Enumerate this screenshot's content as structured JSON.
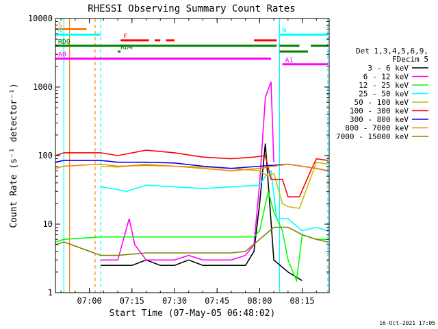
{
  "chart_data": {
    "type": "line",
    "title": "RHESSI Observing Summary Count Rates",
    "xlabel": "Start Time (07-May-05 06:48:02)",
    "ylabel": "Count Rate (s⁻¹ detector⁻¹)",
    "yscale": "log",
    "ylim": [
      1,
      10000
    ],
    "xlim": [
      "06:48:02",
      "08:24:30"
    ],
    "x_ticks": [
      "07:00",
      "07:15",
      "07:30",
      "07:45",
      "08:00",
      "08:15"
    ],
    "y_ticks": [
      "1",
      "10",
      "100",
      "1000",
      "10000"
    ],
    "legend_title": [
      "Det 1,3,4,5,6,9,",
      "FDecim 5"
    ],
    "legend_position": "right",
    "timestamp": "16-Oct-2021 17:05",
    "series": [
      {
        "name": "3 - 6 keV",
        "color": "#000000",
        "x": [
          "07:04",
          "07:10",
          "07:15",
          "07:20",
          "07:25",
          "07:30",
          "07:35",
          "07:40",
          "07:45",
          "07:50",
          "07:55",
          "07:58",
          "08:00",
          "08:02",
          "08:05",
          "08:10",
          "08:15"
        ],
        "y": [
          2.5,
          2.5,
          2.5,
          3,
          2.5,
          2.5,
          3,
          2.5,
          2.5,
          2.5,
          2.5,
          4,
          20,
          150,
          3,
          2,
          1.5
        ]
      },
      {
        "name": "6 - 12 keV",
        "color": "#ff00ff",
        "x": [
          "07:04",
          "07:10",
          "07:14",
          "07:16",
          "07:20",
          "07:25",
          "07:30",
          "07:35",
          "07:40",
          "07:45",
          "07:50",
          "07:55",
          "07:58",
          "08:00",
          "08:02",
          "08:04",
          "08:05"
        ],
        "y": [
          3,
          3,
          12,
          5,
          3,
          3,
          3,
          3.5,
          3,
          3,
          3,
          3.5,
          5,
          40,
          700,
          1200,
          80
        ]
      },
      {
        "name": "12 - 25 keV",
        "color": "#00ff00",
        "x": [
          "06:48",
          "06:51",
          "07:04",
          "07:10",
          "07:20",
          "07:30",
          "07:40",
          "07:50",
          "07:58",
          "08:00",
          "08:03",
          "08:05",
          "08:08",
          "08:10",
          "08:13",
          "08:15",
          "08:20",
          "08:24"
        ],
        "y": [
          5.5,
          6,
          6.5,
          6.5,
          6.5,
          6.5,
          6.5,
          6.5,
          6.5,
          8,
          30,
          15,
          8,
          3,
          1.5,
          7,
          6,
          6
        ]
      },
      {
        "name": "25 - 50 keV",
        "color": "#00ffff",
        "x": [
          "07:04",
          "07:10",
          "07:13",
          "07:20",
          "07:30",
          "07:40",
          "07:50",
          "08:00",
          "08:02",
          "08:04",
          "08:06",
          "08:10",
          "08:15",
          "08:20",
          "08:24"
        ],
        "y": [
          35,
          32,
          30,
          37,
          35,
          33,
          35,
          37,
          50,
          60,
          12,
          12,
          8,
          9,
          8
        ]
      },
      {
        "name": "50 - 100 keV",
        "color": "#c0c000",
        "x": [
          "07:04",
          "07:10",
          "07:20",
          "07:30",
          "07:40",
          "07:50",
          "08:00",
          "08:03",
          "08:05",
          "08:08",
          "08:10",
          "08:14",
          "08:20",
          "08:24"
        ],
        "y": [
          70,
          68,
          75,
          70,
          68,
          65,
          60,
          50,
          55,
          20,
          18,
          17,
          80,
          75
        ]
      },
      {
        "name": "100 - 300 keV",
        "color": "#ff0000",
        "x": [
          "06:48",
          "06:51",
          "07:04",
          "07:10",
          "07:20",
          "07:30",
          "07:40",
          "07:50",
          "07:58",
          "08:02",
          "08:04",
          "08:08",
          "08:10",
          "08:14",
          "08:18",
          "08:20",
          "08:24"
        ],
        "y": [
          100,
          110,
          110,
          100,
          120,
          110,
          95,
          90,
          95,
          100,
          45,
          45,
          25,
          25,
          60,
          90,
          85
        ]
      },
      {
        "name": "300 - 800 keV",
        "color": "#0000ff",
        "x": [
          "06:48",
          "06:51",
          "07:04",
          "07:10",
          "07:20",
          "07:30",
          "07:40",
          "07:50",
          "08:00",
          "08:10",
          "08:20",
          "08:24"
        ],
        "y": [
          80,
          85,
          85,
          80,
          80,
          78,
          70,
          65,
          70,
          75,
          65,
          60
        ]
      },
      {
        "name": "800 - 7000 keV",
        "color": "#ff8000",
        "x": [
          "06:48",
          "06:51",
          "07:04",
          "07:10",
          "07:20",
          "07:30",
          "07:40",
          "07:50",
          "08:00",
          "08:10",
          "08:20",
          "08:24"
        ],
        "y": [
          65,
          70,
          75,
          70,
          72,
          70,
          65,
          60,
          65,
          75,
          65,
          60
        ]
      },
      {
        "name": "7000 - 15000 keV",
        "color": "#808000",
        "x": [
          "06:48",
          "06:51",
          "07:04",
          "07:10",
          "07:20",
          "07:30",
          "07:40",
          "07:50",
          "07:55",
          "08:00",
          "08:05",
          "08:10",
          "08:15",
          "08:20",
          "08:24"
        ],
        "y": [
          5,
          5.5,
          3.5,
          3.5,
          3.8,
          3.8,
          3.8,
          3.8,
          4,
          6,
          9,
          9,
          7,
          6,
          5.5
        ]
      }
    ],
    "flags": [
      {
        "label": "S",
        "color": "#ff8000",
        "y": 7000,
        "start": "06:48",
        "end": "06:59"
      },
      {
        "label": "N",
        "color": "#00ffff",
        "y": 5800,
        "start": "06:48",
        "end": "07:04"
      },
      {
        "label": "N",
        "color": "#00ffff",
        "y": 5800,
        "start": "08:07",
        "end": "08:24"
      },
      {
        "label": "F",
        "color": "#ff0000",
        "y": 4800,
        "start": "07:11",
        "end": "07:21"
      },
      {
        "label": "",
        "color": "#ff0000",
        "y": 4800,
        "start": "07:23",
        "end": "07:25"
      },
      {
        "label": "",
        "color": "#ff0000",
        "y": 4800,
        "start": "07:27",
        "end": "07:30"
      },
      {
        "label": "",
        "color": "#ff0000",
        "y": 4800,
        "start": "07:58",
        "end": "08:06"
      },
      {
        "label": "RD0",
        "color": "#008000",
        "y": 4000,
        "start": "06:48",
        "end": "08:06"
      },
      {
        "label": "",
        "color": "#008000",
        "y": 4000,
        "start": "08:07",
        "end": "08:14"
      },
      {
        "label": "",
        "color": "#008000",
        "y": 4000,
        "start": "08:18",
        "end": "08:24"
      },
      {
        "label": "RD4",
        "color": "#008000",
        "y": 3300,
        "start": "07:10",
        "end": "07:11"
      },
      {
        "label": "",
        "color": "#008000",
        "y": 3300,
        "start": "08:07",
        "end": "08:17"
      },
      {
        "label": "A0",
        "color": "#ff00ff",
        "y": 2600,
        "start": "06:48",
        "end": "08:04"
      },
      {
        "label": "A1",
        "color": "#ff00ff",
        "y": 2150,
        "start": "08:08",
        "end": "08:24"
      }
    ],
    "vertical_markers": [
      {
        "time": "06:51",
        "color": "#00ffff",
        "style": "solid"
      },
      {
        "time": "06:53",
        "color": "#ff8000",
        "style": "solid"
      },
      {
        "time": "07:02",
        "color": "#ff8000",
        "style": "dashed"
      },
      {
        "time": "07:04",
        "color": "#00ffff",
        "style": "dashed"
      },
      {
        "time": "08:07",
        "color": "#00ffff",
        "style": "solid"
      },
      {
        "time": "08:24",
        "color": "#00ffff",
        "style": "dashed"
      }
    ]
  }
}
